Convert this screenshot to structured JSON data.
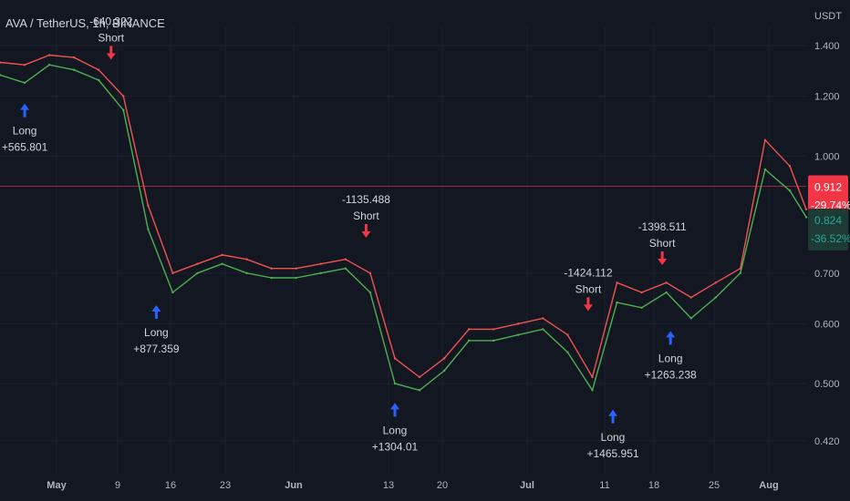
{
  "chart_title": "AVA / TetherUS, 1h, BINANCE",
  "price_unit": "USDT",
  "colors": {
    "background": "#131722",
    "grid": "#1e2230",
    "price_green": "#4caf50",
    "price_blue": "#42a5f5",
    "price_red_band": "#ef5350",
    "long_arrow": "#2962ff",
    "short_arrow": "#f23645",
    "last_price_label": "#f23645",
    "secondary_price_label": "#1e3a35",
    "secondary_price_text": "#26a69a",
    "axis_text": "#b2b5be"
  },
  "price_badges": {
    "last_price": "0.912",
    "last_change": "-29.74%",
    "second_price": "0.824",
    "second_change": "-36.52%"
  },
  "chart_data": {
    "type": "line",
    "y_scale": "log",
    "ylim": [
      0.38,
      1.48
    ],
    "y_ticks": [
      "1.400",
      "1.200",
      "1.000",
      "0.700",
      "0.600",
      "0.500",
      "0.420"
    ],
    "x_ticks": [
      "May",
      "9",
      "16",
      "23",
      "Jun",
      "13",
      "20",
      "Jul",
      "11",
      "18",
      "25",
      "Aug"
    ],
    "series": [
      {
        "color": "#4caf50",
        "x": [
          0,
          3,
          6,
          9,
          12,
          15,
          18,
          21,
          24,
          27,
          30,
          33,
          36,
          39,
          42,
          45,
          48,
          51,
          54,
          57,
          60,
          63,
          66,
          69,
          72,
          75,
          78,
          81,
          84,
          87,
          90,
          93,
          96,
          98
        ],
        "values": [
          1.28,
          1.25,
          1.32,
          1.3,
          1.26,
          1.15,
          0.8,
          0.66,
          0.7,
          0.72,
          0.7,
          0.69,
          0.69,
          0.7,
          0.71,
          0.66,
          0.5,
          0.49,
          0.52,
          0.57,
          0.57,
          0.58,
          0.59,
          0.55,
          0.49,
          0.64,
          0.63,
          0.66,
          0.61,
          0.65,
          0.7,
          0.96,
          0.9,
          0.83
        ]
      },
      {
        "color": "#ef5350",
        "x": [
          0,
          3,
          6,
          9,
          12,
          15,
          18,
          21,
          24,
          27,
          30,
          33,
          36,
          39,
          42,
          45,
          48,
          51,
          54,
          57,
          60,
          63,
          66,
          69,
          72,
          75,
          78,
          81,
          84,
          87,
          90,
          93,
          96,
          98
        ],
        "values": [
          1.33,
          1.32,
          1.36,
          1.35,
          1.3,
          1.2,
          0.86,
          0.7,
          0.72,
          0.74,
          0.73,
          0.71,
          0.71,
          0.72,
          0.73,
          0.7,
          0.54,
          0.51,
          0.54,
          0.59,
          0.59,
          0.6,
          0.61,
          0.58,
          0.51,
          0.68,
          0.66,
          0.68,
          0.65,
          0.68,
          0.71,
          1.05,
          0.97,
          0.85
        ]
      }
    ],
    "signals": [
      {
        "x": 3,
        "price": 1.22,
        "direction": "Long",
        "value": "+565.801"
      },
      {
        "x": 13.5,
        "price": 1.29,
        "direction": "Short",
        "value": "-640.322"
      },
      {
        "x": 19,
        "price": 0.66,
        "direction": "Long",
        "value": "+877.359"
      },
      {
        "x": 44.5,
        "price": 0.75,
        "direction": "Short",
        "value": "-1135.488"
      },
      {
        "x": 48,
        "price": 0.49,
        "direction": "Long",
        "value": "+1304.01"
      },
      {
        "x": 71.5,
        "price": 0.6,
        "direction": "Short",
        "value": "-1424.112"
      },
      {
        "x": 74.5,
        "price": 0.48,
        "direction": "Long",
        "value": "+1465.951"
      },
      {
        "x": 80.5,
        "price": 0.69,
        "direction": "Short",
        "value": "-1398.511"
      },
      {
        "x": 81.5,
        "price": 0.61,
        "direction": "Long",
        "value": "+1263.238"
      }
    ]
  }
}
